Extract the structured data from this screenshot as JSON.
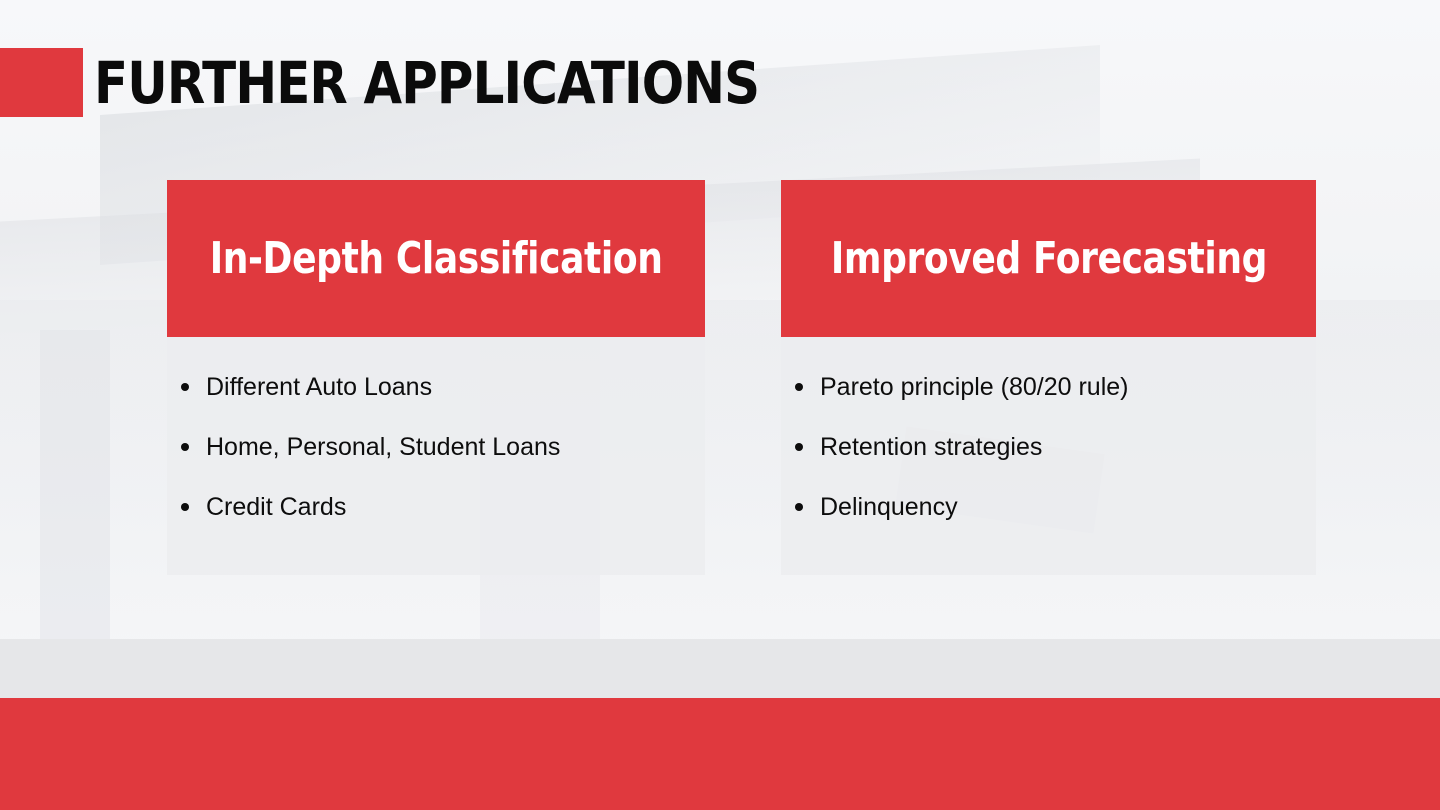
{
  "slide": {
    "title": "FURTHER APPLICATIONS",
    "accent_color": "#e0393e"
  },
  "cards": [
    {
      "heading": "In-Depth Classification",
      "items": [
        "Different Auto Loans",
        "Home, Personal, Student Loans",
        "Credit Cards"
      ]
    },
    {
      "heading": "Improved Forecasting",
      "items": [
        "Pareto principle (80/20 rule)",
        "Retention strategies",
        "Delinquency"
      ]
    }
  ]
}
